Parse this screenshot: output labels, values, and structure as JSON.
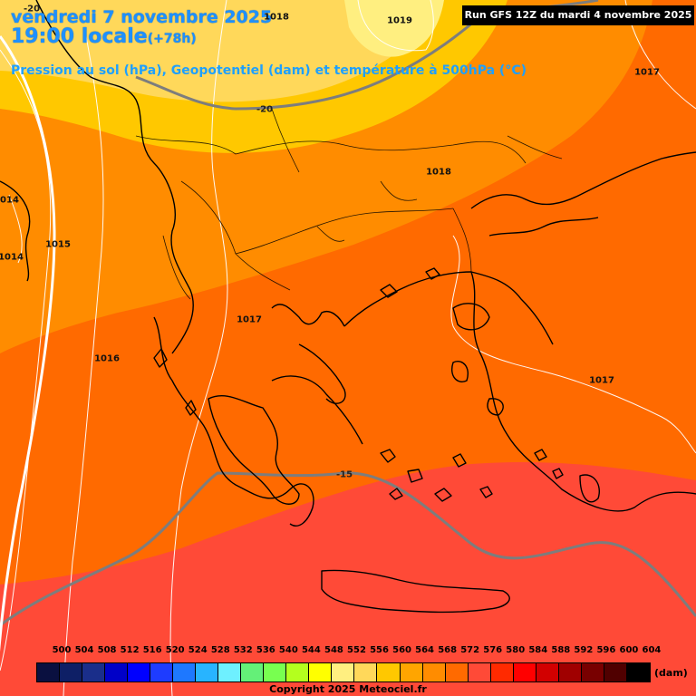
{
  "header": {
    "date": "vendredi 7 novembre 2025",
    "time": "19:00 locale",
    "lead": "(+78h)",
    "subtitle": "Pression au sol (hPa), Geopotentiel (dam) et température à 500hPa (°C)",
    "run": "Run GFS 12Z du mardi 4 novembre 2025"
  },
  "pressure_labels": [
    "1018",
    "1019",
    "1017",
    "1018",
    "1014",
    "1015",
    "1014",
    "1017",
    "1016",
    "1017"
  ],
  "temperature_labels": [
    "-20",
    "-20",
    "-15"
  ],
  "legend": {
    "values": [
      "500",
      "504",
      "508",
      "512",
      "516",
      "520",
      "524",
      "528",
      "532",
      "536",
      "540",
      "544",
      "548",
      "552",
      "556",
      "560",
      "564",
      "568",
      "572",
      "576",
      "580",
      "584",
      "588",
      "592",
      "596",
      "600",
      "604"
    ],
    "colors": [
      "#0a1040",
      "#0e1f66",
      "#1a2e8a",
      "#0000c8",
      "#0000ff",
      "#1e3cff",
      "#1e78ff",
      "#28b4ff",
      "#6ef0ff",
      "#64f078",
      "#78ff50",
      "#b4ff1e",
      "#ffff00",
      "#ffef80",
      "#ffd85a",
      "#ffc800",
      "#ffa500",
      "#ff8c00",
      "#ff6a00",
      "#ff4a37",
      "#ff2a00",
      "#ff0000",
      "#d20000",
      "#a00000",
      "#780000",
      "#500000",
      "#000000"
    ],
    "unit": "(dam)"
  },
  "copyright": "Copyright 2025 Meteociel.fr"
}
